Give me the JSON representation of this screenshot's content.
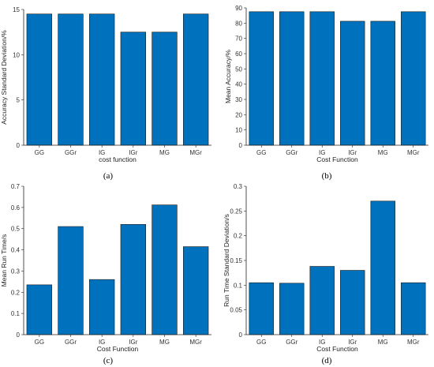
{
  "chart_data": [
    {
      "type": "bar",
      "panel_label": "(a)",
      "categories": [
        "GG",
        "GGr",
        "IG",
        "IGr",
        "MG",
        "MGr"
      ],
      "values": [
        14.5,
        14.5,
        14.5,
        12.5,
        12.5,
        14.5
      ],
      "xlabel": "cost function",
      "ylabel": "Accuracy Standard Deviation/%",
      "ylim": [
        0,
        15
      ],
      "yticks": [
        "0",
        "5",
        "10",
        "15"
      ],
      "color": "#0072BD"
    },
    {
      "type": "bar",
      "panel_label": "(b)",
      "categories": [
        "GG",
        "GGr",
        "IG",
        "IGr",
        "MG",
        "MGr"
      ],
      "values": [
        87.5,
        87.5,
        87.5,
        81.25,
        81.25,
        87.5
      ],
      "xlabel": "Cost Function",
      "ylabel": "Mean Accuracy/%",
      "ylim": [
        0,
        90
      ],
      "yticks": [
        "0",
        "10",
        "20",
        "30",
        "40",
        "50",
        "60",
        "70",
        "80",
        "90"
      ],
      "color": "#0072BD"
    },
    {
      "type": "bar",
      "panel_label": "(c)",
      "categories": [
        "GG",
        "GGr",
        "IG",
        "IGr",
        "MG",
        "MGr"
      ],
      "values": [
        0.235,
        0.51,
        0.26,
        0.52,
        0.612,
        0.415
      ],
      "xlabel": "Cost Function",
      "ylabel": "Mean Run Time/s",
      "ylim": [
        0,
        0.7
      ],
      "yticks": [
        "0",
        "0.1",
        "0.2",
        "0.3",
        "0.4",
        "0.5",
        "0.6",
        "0.7"
      ],
      "color": "#0072BD"
    },
    {
      "type": "bar",
      "panel_label": "(d)",
      "categories": [
        "GG",
        "GGr",
        "IG",
        "IGr",
        "MG",
        "MGr"
      ],
      "values": [
        0.105,
        0.104,
        0.138,
        0.13,
        0.27,
        0.105
      ],
      "xlabel": "Cost Function",
      "ylabel": "Run Time Standard Deviation/s",
      "ylim": [
        0,
        0.3
      ],
      "yticks": [
        "0",
        "0.05",
        "0.1",
        "0.15",
        "0.2",
        "0.25",
        "0.3"
      ],
      "color": "#0072BD"
    }
  ]
}
